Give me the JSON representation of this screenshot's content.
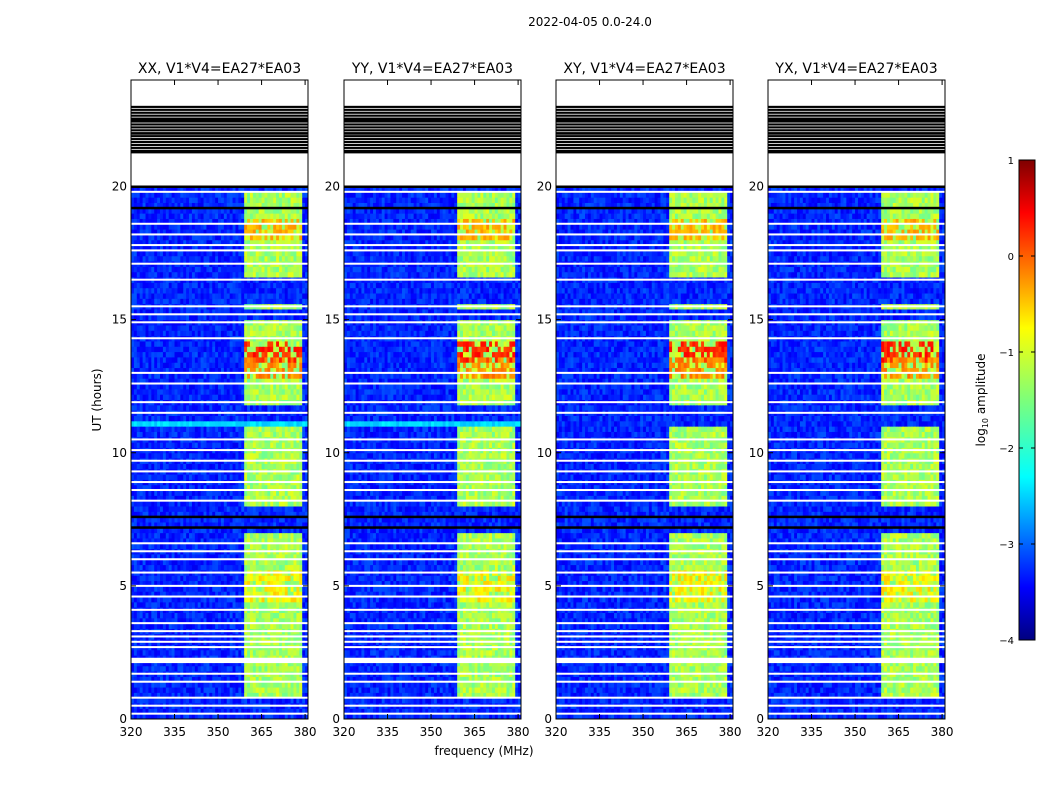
{
  "figure_title": "2022-04-05 0.0-24.0",
  "chart_data": {
    "type": "heatmap",
    "title": "2022-04-05 0.0-24.0",
    "xlabel": "frequency (MHz)",
    "ylabel": "UT (hours)",
    "xlim": [
      320,
      381
    ],
    "ylim": [
      0,
      24
    ],
    "xticks": [
      320,
      335,
      350,
      365,
      380
    ],
    "yticks": [
      0,
      5,
      10,
      15,
      20
    ],
    "colormap": "jet",
    "colorbar": {
      "label": "log10 amplitude",
      "label_prefix": "log",
      "label_sub": "10",
      "label_suffix": " amplitude",
      "ticks": [
        "1",
        "0",
        "−1",
        "−2",
        "−3",
        "−4"
      ],
      "range": [
        -4,
        1
      ]
    },
    "background_level": -3.2,
    "rfi_band_mhz": [
      359,
      379
    ],
    "rfi_channels_mhz": [
      [
        359.5,
        363.5
      ],
      [
        364.5,
        368.5
      ],
      [
        369.5,
        373.5
      ],
      [
        374.5,
        378.5
      ]
    ],
    "rfi_active_hours": [
      [
        0.9,
        2.1
      ],
      [
        2.3,
        6.5
      ],
      [
        6.7,
        7.0
      ],
      [
        8.0,
        11.0
      ],
      [
        11.9,
        15.0
      ],
      [
        15.4,
        15.6
      ],
      [
        16.6,
        19.8
      ]
    ],
    "rfi_hotspots": [
      {
        "t": [
          13.5,
          14.2
        ],
        "level": 0.2
      },
      {
        "t": [
          12.9,
          13.6
        ],
        "level": -0.3
      },
      {
        "t": [
          18.0,
          18.8
        ],
        "level": -0.5
      },
      {
        "t": [
          4.5,
          5.5
        ],
        "level": -0.8
      }
    ],
    "blank_hours": [
      [
        21.0,
        22.3
      ],
      [
        22.3,
        23.0
      ],
      [
        23.1,
        24.0
      ],
      [
        2.1,
        2.3
      ]
    ],
    "blank_lines_hours": [
      0.2,
      0.5,
      0.8,
      1.4,
      1.7,
      2.7,
      2.9,
      3.1,
      3.3,
      3.6,
      4.1,
      4.6,
      5.0,
      5.5,
      6.0,
      6.3,
      6.6,
      8.2,
      8.6,
      8.9,
      9.3,
      9.7,
      10.1,
      10.5,
      11.5,
      11.9,
      12.6,
      13.0,
      14.3,
      14.9,
      15.2,
      15.5,
      16.5,
      17.1,
      17.6,
      17.8,
      18.2,
      18.6,
      19.8
    ],
    "flagged_lines_hours": [
      7.2,
      7.6,
      19.2,
      20.0,
      22.0,
      22.5,
      21.3
    ],
    "panels": [
      {
        "name": "XX",
        "title": "XX, V1*V4=EA27*EA03"
      },
      {
        "name": "YY",
        "title": "YY, V1*V4=EA27*EA03"
      },
      {
        "name": "XY",
        "title": "XY, V1*V4=EA27*EA03"
      },
      {
        "name": "YX",
        "title": "YX, V1*V4=EA27*EA03"
      }
    ]
  }
}
